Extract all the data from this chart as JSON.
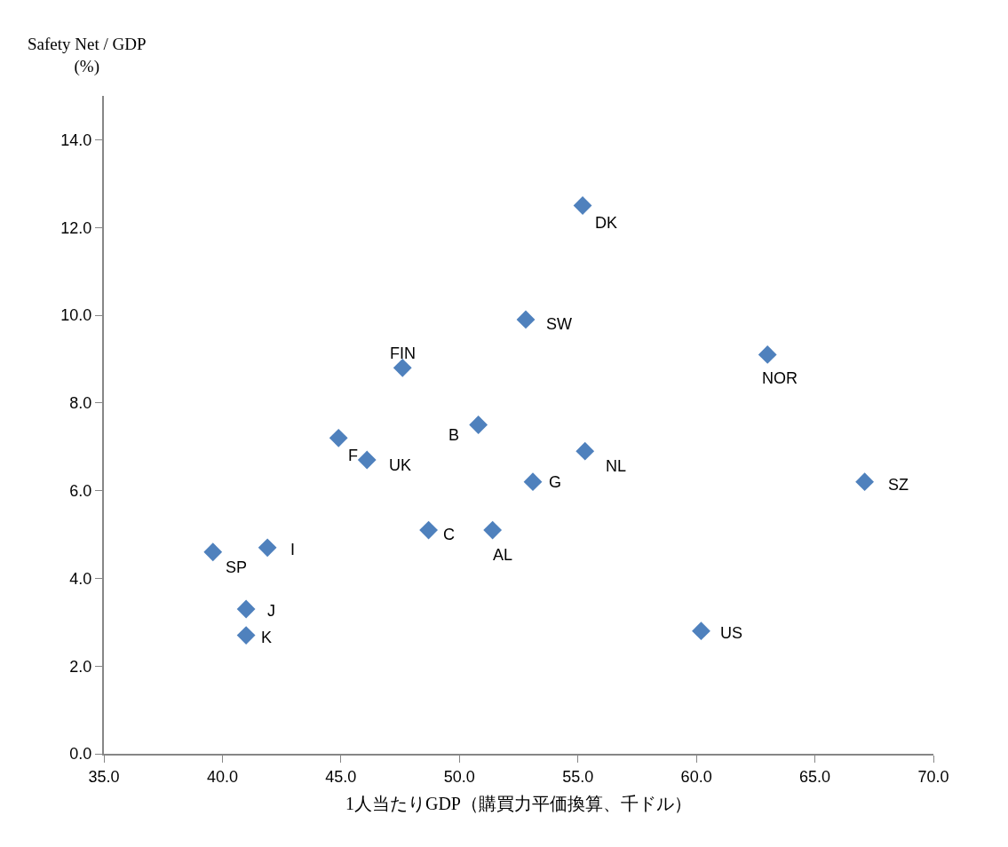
{
  "chart_data": {
    "type": "scatter",
    "xlabel": "1人当たりGDP（購買力平価換算、千ドル）",
    "ylabel": "Safety Net / GDP\n(%)",
    "x": [
      55.2,
      52.8,
      63.0,
      47.6,
      50.8,
      44.9,
      46.1,
      55.3,
      53.1,
      67.1,
      48.7,
      51.4,
      39.6,
      41.9,
      41.0,
      41.0,
      60.2
    ],
    "values": [
      12.5,
      9.9,
      9.1,
      8.8,
      7.5,
      7.2,
      6.7,
      6.9,
      6.2,
      6.2,
      5.1,
      5.1,
      4.6,
      4.7,
      3.3,
      2.7,
      2.8
    ],
    "color": "#4f81bd",
    "marker": "diamond",
    "legend": false,
    "xlim": [
      35,
      70
    ],
    "xticks": [
      {
        "value": 35,
        "label": "35.0"
      },
      {
        "value": 40,
        "label": "40.0"
      },
      {
        "value": 45,
        "label": "45.0"
      },
      {
        "value": 50,
        "label": "50.0"
      },
      {
        "value": 55,
        "label": "55.0"
      },
      {
        "value": 60,
        "label": "60.0"
      },
      {
        "value": 65,
        "label": "65.0"
      },
      {
        "value": 70,
        "label": "70.0"
      }
    ],
    "ylim": [
      0,
      15
    ],
    "yticks": [
      {
        "value": 0,
        "label": "0.0"
      },
      {
        "value": 2,
        "label": "2.0"
      },
      {
        "value": 4,
        "label": "4.0"
      },
      {
        "value": 6,
        "label": "6.0"
      },
      {
        "value": 8,
        "label": "8.0"
      },
      {
        "value": 10,
        "label": "10.0"
      },
      {
        "value": 12,
        "label": "12.0"
      },
      {
        "value": 14,
        "label": "14.0"
      }
    ],
    "annotations": [
      {
        "text": "DK",
        "x": 55.2,
        "y": 12.5
      },
      {
        "text": "SW",
        "x": 52.8,
        "y": 9.9
      },
      {
        "text": "NOR",
        "x": 63.0,
        "y": 9.1
      },
      {
        "text": "FIN",
        "x": 47.6,
        "y": 8.8
      },
      {
        "text": "B",
        "x": 50.8,
        "y": 7.5
      },
      {
        "text": "F",
        "x": 44.9,
        "y": 7.2
      },
      {
        "text": "UK",
        "x": 46.1,
        "y": 6.7
      },
      {
        "text": "NL",
        "x": 55.3,
        "y": 6.9
      },
      {
        "text": "G",
        "x": 53.1,
        "y": 6.2
      },
      {
        "text": "SZ",
        "x": 67.1,
        "y": 6.2
      },
      {
        "text": "C",
        "x": 48.7,
        "y": 5.1
      },
      {
        "text": "AL",
        "x": 51.4,
        "y": 5.1
      },
      {
        "text": "SP",
        "x": 39.6,
        "y": 4.6
      },
      {
        "text": "I",
        "x": 41.9,
        "y": 4.7
      },
      {
        "text": "J",
        "x": 41.0,
        "y": 3.3
      },
      {
        "text": "K",
        "x": 41.0,
        "y": 2.7
      },
      {
        "text": "US",
        "x": 60.2,
        "y": 2.8
      }
    ]
  }
}
